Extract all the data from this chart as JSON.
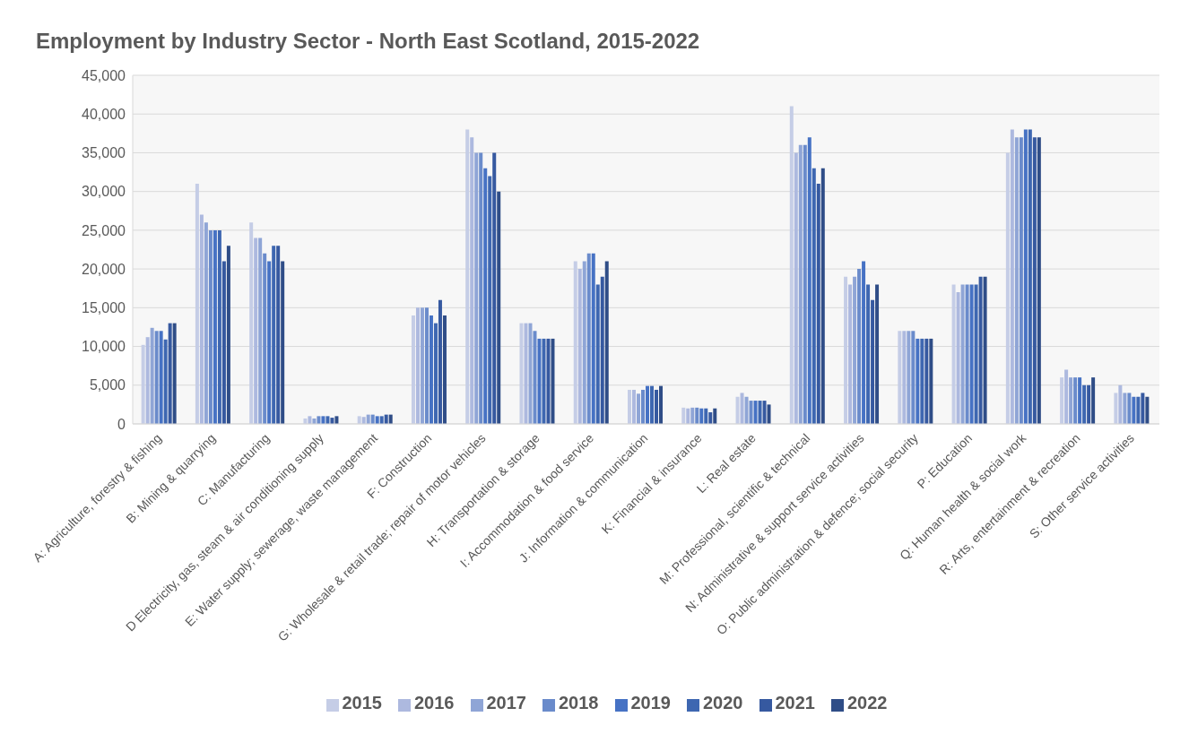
{
  "chart_data": {
    "type": "bar",
    "title": "Employment by Industry Sector - North East Scotland, 2015-2022",
    "categories": [
      "A: Agriculture, forestry & fishing",
      "B: Mining & quarrying",
      "C: Manufacturing",
      "D Electricity, gas, steam & air conditioning supply",
      "E: Water supply; sewerage, waste management",
      "F: Construction",
      "G: Wholesale & retail trade; repair of motor vehicles",
      "H: Transportation & storage",
      "I: Accommodation & food service",
      "J: Information & communication",
      "K: Financial & insurance",
      "L: Real estate",
      "M: Professional, scientific & technical",
      "N: Administrative & support service activities",
      "O: Public administration & defence; social security",
      "P: Education",
      "Q: Human health & social work",
      "R: Arts, entertainment & recreation",
      "S: Other service activities"
    ],
    "series": [
      {
        "name": "2015",
        "color": "#c5cde6",
        "values": [
          10200,
          31000,
          26000,
          700,
          1000,
          14000,
          38000,
          13000,
          21000,
          4400,
          2100,
          3500,
          41000,
          19000,
          12000,
          18000,
          35000,
          6000,
          4000
        ]
      },
      {
        "name": "2016",
        "color": "#adb9df",
        "values": [
          11200,
          27000,
          24000,
          1000,
          900,
          15000,
          37000,
          13000,
          20000,
          4400,
          2000,
          4000,
          35000,
          18000,
          12000,
          17000,
          38000,
          7000,
          5000
        ]
      },
      {
        "name": "2017",
        "color": "#8fa5d6",
        "values": [
          12400,
          26000,
          24000,
          700,
          1200,
          15000,
          35000,
          13000,
          21000,
          3900,
          2100,
          3500,
          36000,
          19000,
          12000,
          18000,
          37000,
          6000,
          4000
        ]
      },
      {
        "name": "2018",
        "color": "#6a8bcb",
        "values": [
          12000,
          25000,
          22000,
          1000,
          1200,
          15000,
          35000,
          12000,
          22000,
          4400,
          2100,
          3000,
          36000,
          20000,
          12000,
          18000,
          37000,
          6000,
          4000
        ]
      },
      {
        "name": "2019",
        "color": "#4672c4",
        "values": [
          12000,
          25000,
          21000,
          1000,
          1000,
          14000,
          33000,
          11000,
          22000,
          4900,
          2000,
          3000,
          37000,
          21000,
          11000,
          18000,
          38000,
          6000,
          3500
        ]
      },
      {
        "name": "2020",
        "color": "#3e67b1",
        "values": [
          10900,
          25000,
          23000,
          1000,
          1000,
          13000,
          32000,
          11000,
          18000,
          4900,
          2000,
          3000,
          33000,
          18000,
          11000,
          18000,
          38000,
          5000,
          3500
        ]
      },
      {
        "name": "2021",
        "color": "#3659a0",
        "values": [
          13000,
          21000,
          23000,
          800,
          1200,
          16000,
          35000,
          11000,
          19000,
          4400,
          1500,
          3000,
          31000,
          16000,
          11000,
          19000,
          37000,
          5000,
          4000
        ]
      },
      {
        "name": "2022",
        "color": "#2f4d87",
        "values": [
          13000,
          23000,
          21000,
          1000,
          1200,
          14000,
          30000,
          11000,
          21000,
          4900,
          2000,
          2500,
          33000,
          18000,
          11000,
          19000,
          37000,
          6000,
          3500
        ]
      }
    ],
    "ylim": [
      0,
      45000
    ],
    "yticks": [
      0,
      {
        "value": 5000,
        "label": "5,000"
      },
      {
        "value": 10000,
        "label": "10,000"
      },
      {
        "value": 15000,
        "label": "15,000"
      },
      {
        "value": 20000,
        "label": "20,000"
      },
      {
        "value": 25000,
        "label": "25,000"
      },
      {
        "value": 30000,
        "label": "30,000"
      },
      {
        "value": 35000,
        "label": "35,000"
      },
      {
        "value": 40000,
        "label": "40,000"
      },
      {
        "value": 45000,
        "label": "45,000"
      }
    ],
    "grid": "y",
    "legend": "bottom"
  }
}
